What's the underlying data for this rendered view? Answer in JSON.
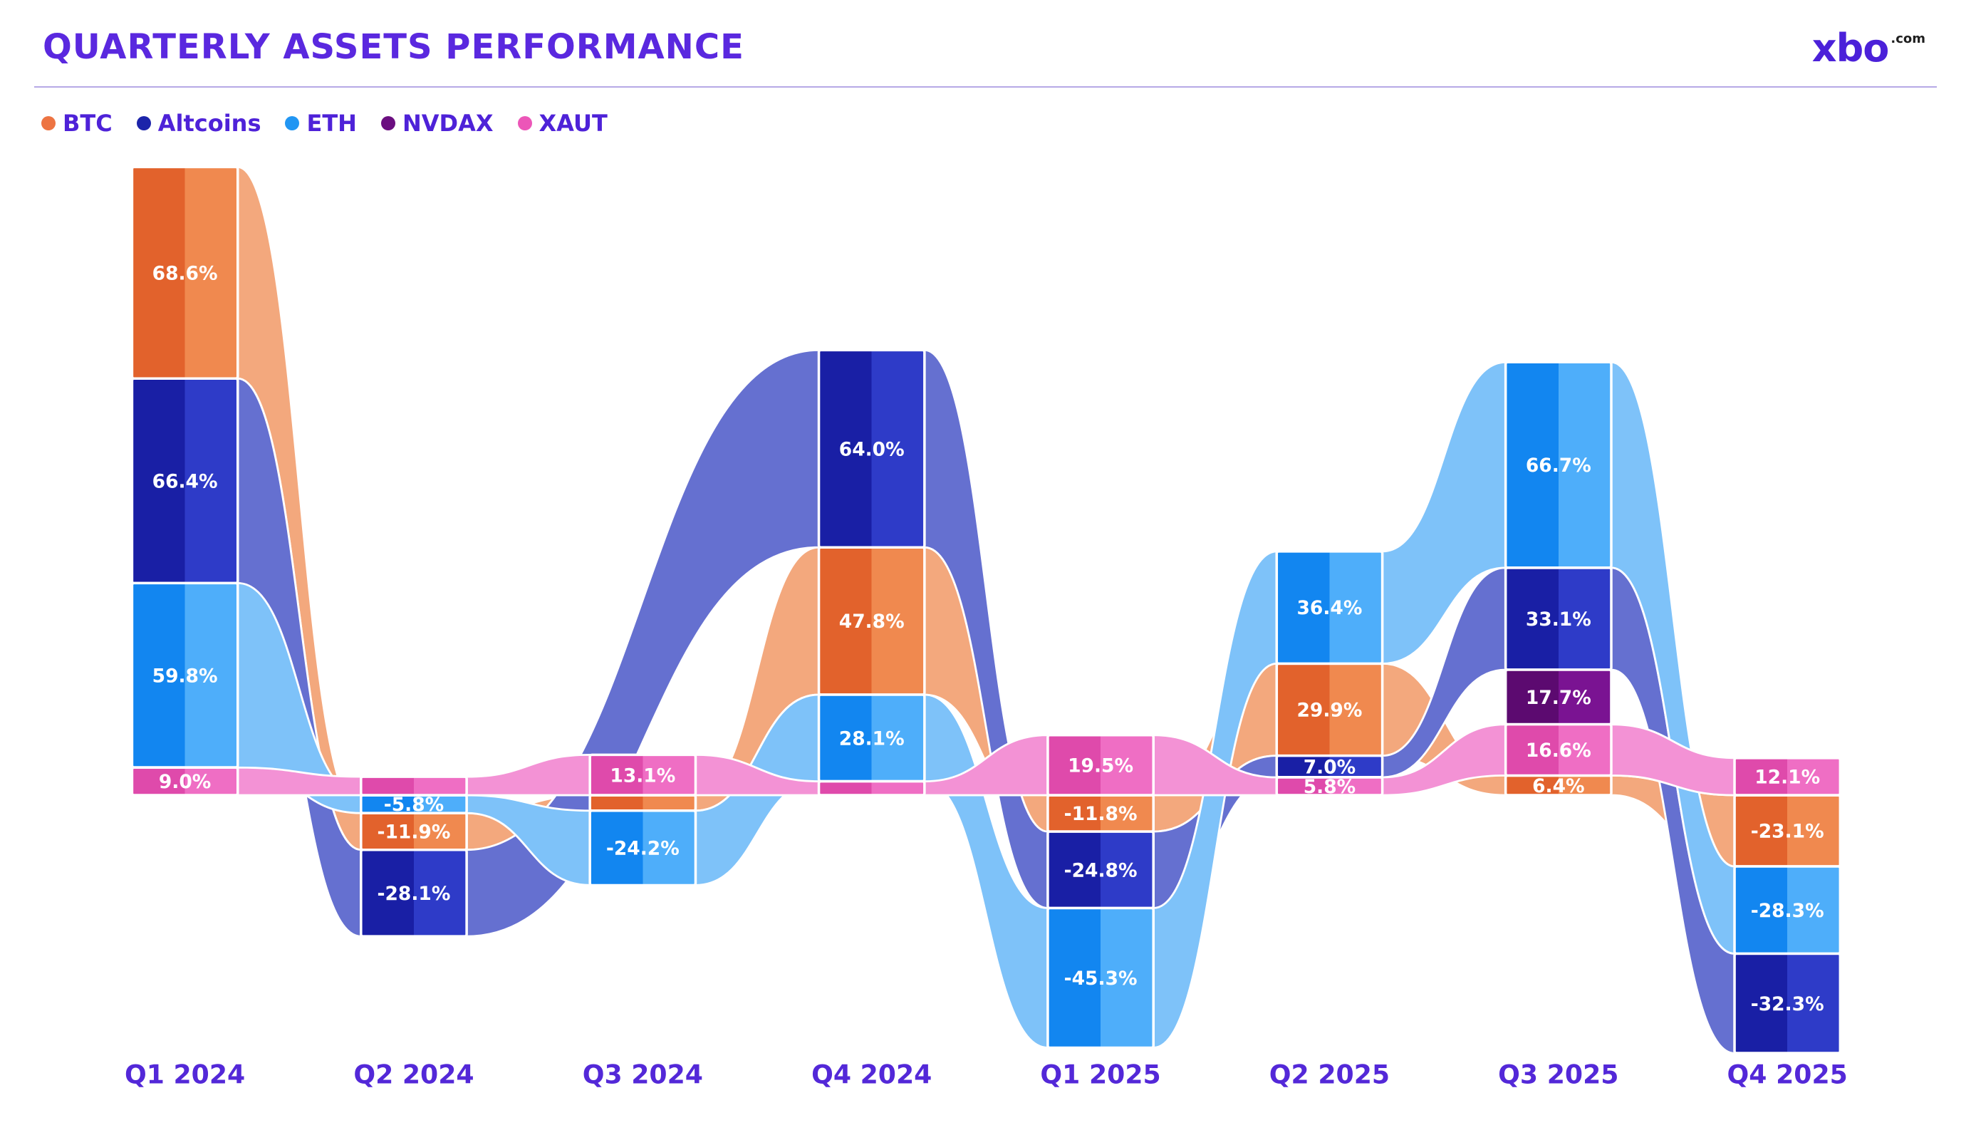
{
  "header": {
    "title": "QUARTERLY ASSETS PERFORMANCE",
    "logo": {
      "text": "xbo",
      "suffix": ".com"
    }
  },
  "colors": {
    "title": "#5A28DF",
    "legend_text": "#4E22D8",
    "axis_label": "#5328D8",
    "divider": "#B6A9E6",
    "logo": "#4B21D9",
    "background": "#FFFFFF",
    "value_label_text": "#FFFFFF"
  },
  "chart_data": {
    "type": "ribbon",
    "title": "QUARTERLY ASSETS PERFORMANCE",
    "unit": "%",
    "baseline_value": 0,
    "legend_position": "top-left",
    "categories": [
      "Q1 2024",
      "Q2 2024",
      "Q3 2024",
      "Q4 2024",
      "Q1 2025",
      "Q2 2025",
      "Q3 2025",
      "Q4 2025"
    ],
    "series": [
      {
        "name": "BTC",
        "color": "#ED7442",
        "color_dark": "#E2622C",
        "color_light": "#F0894F",
        "ribbon_color": "#F3A87D",
        "values": [
          68.6,
          -11.9,
          -5.0,
          47.8,
          -11.8,
          29.9,
          6.4,
          -23.1
        ],
        "labels": [
          "68.6%",
          "-11.9%",
          null,
          "47.8%",
          "-11.8%",
          "29.9%",
          "6.4%",
          "-23.1%"
        ]
      },
      {
        "name": "Altcoins",
        "color": "#1C24AA",
        "color_dark": "#191FA5",
        "color_light": "#2E3BC8",
        "ribbon_color": "#6570D0",
        "values": [
          66.4,
          -28.1,
          null,
          64.0,
          -24.8,
          7.0,
          33.1,
          -32.3
        ],
        "labels": [
          "66.4%",
          "-28.1%",
          null,
          "64.0%",
          "-24.8%",
          "7.0%",
          "33.1%",
          "-32.3%"
        ]
      },
      {
        "name": "ETH",
        "color": "#2196F3",
        "color_dark": "#1286F0",
        "color_light": "#4EAEFA",
        "ribbon_color": "#7EC2F9",
        "values": [
          59.8,
          -5.8,
          -24.2,
          28.1,
          -45.3,
          36.4,
          66.7,
          -28.3
        ],
        "labels": [
          "59.8%",
          "-5.8%",
          "-24.2%",
          "28.1%",
          "-45.3%",
          "36.4%",
          "66.7%",
          "-28.3%"
        ]
      },
      {
        "name": "NVDAX",
        "color": "#6B0E80",
        "color_dark": "#5C0A70",
        "color_light": "#7A1392",
        "ribbon_color": "#A55CBE",
        "values": [
          null,
          null,
          null,
          null,
          null,
          null,
          17.7,
          null
        ],
        "labels": [
          null,
          null,
          null,
          null,
          null,
          null,
          "17.7%",
          null
        ]
      },
      {
        "name": "XAUT",
        "color": "#EC56B8",
        "color_dark": "#DF4AAB",
        "color_light": "#EF6EC4",
        "ribbon_color": "#F392D5",
        "values": [
          9.0,
          6.0,
          13.1,
          4.5,
          19.5,
          5.8,
          16.6,
          12.1
        ],
        "labels": [
          "9.0%",
          null,
          "13.1%",
          null,
          "19.5%",
          "5.8%",
          "16.6%",
          "12.1%"
        ]
      }
    ],
    "note": "Null labels = ribbon passes through that quarter without a printed value; magnitude estimated from ribbon thickness."
  }
}
